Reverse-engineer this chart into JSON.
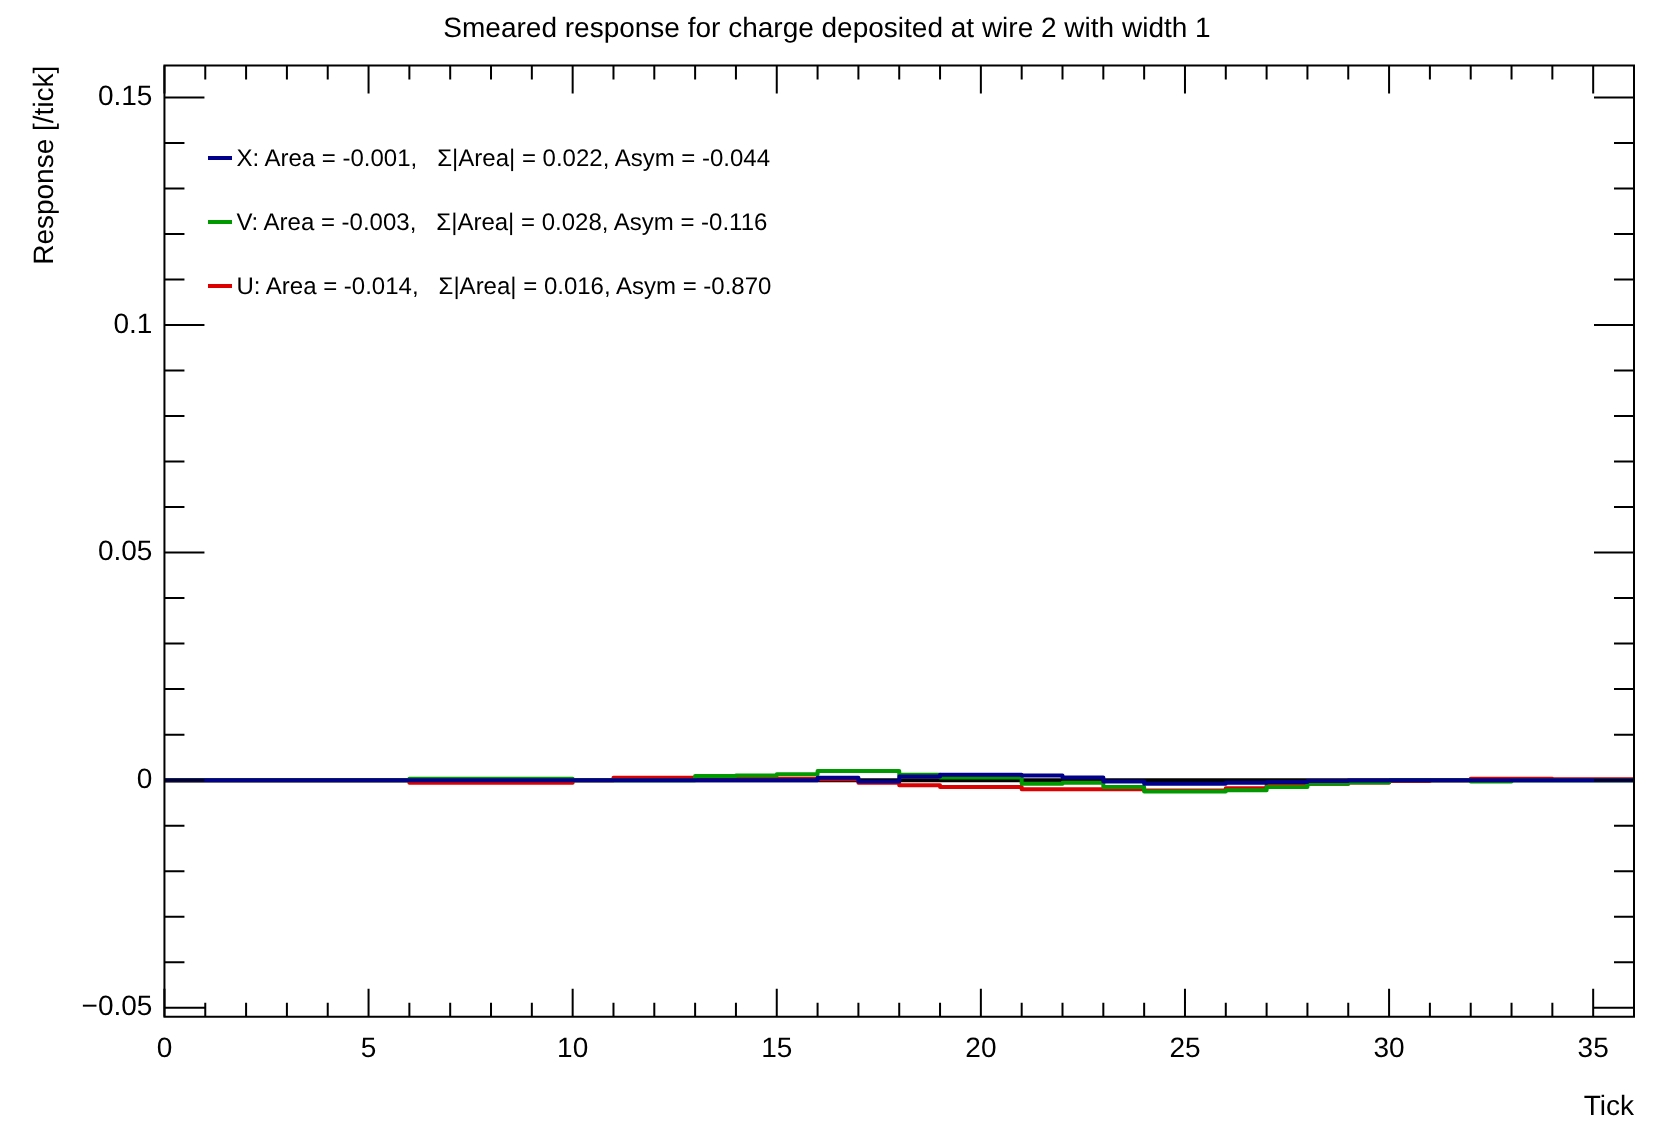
{
  "chart_data": {
    "type": "histogram",
    "title": "Smeared response for charge deposited at wire 2 with width 1",
    "xlabel": "Tick",
    "ylabel": "Response [/tick]",
    "bins": [
      0,
      1,
      2,
      3,
      4,
      5,
      6,
      7,
      8,
      9,
      10,
      11,
      12,
      13,
      14,
      15,
      16,
      17,
      18,
      19,
      20,
      21,
      22,
      23,
      24,
      25,
      26,
      27,
      28,
      29,
      30,
      31,
      32,
      33,
      34,
      35,
      36
    ],
    "series": [
      {
        "name": "X: Area = -0.001,   Σ|Area| = 0.022, Asym = -0.044",
        "color": "#00008b",
        "values": [
          0,
          0,
          0,
          0,
          0,
          0,
          0,
          0,
          0,
          0,
          0,
          0,
          0,
          0,
          0,
          0,
          0.0005,
          -0.0003,
          0.0008,
          0.0012,
          0.0012,
          0.001,
          0.0006,
          -0.0003,
          -0.0008,
          -0.0008,
          -0.0006,
          -0.0004,
          -0.0002,
          -0.0001,
          0,
          0,
          0,
          0,
          0,
          0
        ]
      },
      {
        "name": "V: Area = -0.003,   Σ|Area| = 0.028, Asym = -0.116",
        "color": "#009900",
        "values": [
          0,
          0,
          0,
          0,
          0,
          0,
          0.0003,
          0.0003,
          0.0003,
          0.0003,
          0,
          0,
          0,
          0.0009,
          0.001,
          0.0013,
          0.002,
          0.002,
          0.0012,
          0.0006,
          0.0006,
          -0.0008,
          -0.0006,
          -0.0015,
          -0.0025,
          -0.0025,
          -0.0022,
          -0.0015,
          -0.0008,
          -0.0005,
          0,
          0,
          -0.0003,
          0,
          0,
          0
        ]
      },
      {
        "name": "U: Area = -0.014,   Σ|Area| = 0.016, Asym = -0.870",
        "color": "#dd0000",
        "values": [
          0,
          0,
          0,
          0,
          0,
          0,
          -0.0006,
          -0.0006,
          -0.0006,
          -0.0006,
          0,
          0.0005,
          0.0005,
          0.0005,
          0.0003,
          0.0003,
          0.0002,
          -0.0006,
          -0.0011,
          -0.0015,
          -0.0015,
          -0.002,
          -0.002,
          -0.002,
          -0.0023,
          -0.0023,
          -0.0018,
          -0.001,
          -0.0008,
          -0.0005,
          -0.0002,
          0,
          0.0003,
          0.0003,
          0.0002,
          0.0002
        ]
      }
    ],
    "xlim": [
      0,
      36
    ],
    "xticks": [
      0,
      {
        "value": 1,
        "label": null
      },
      {
        "value": 2,
        "label": null
      },
      {
        "value": 3,
        "label": null
      },
      {
        "value": 4,
        "label": null
      },
      5,
      {
        "value": 6,
        "label": null
      },
      {
        "value": 7,
        "label": null
      },
      {
        "value": 8,
        "label": null
      },
      {
        "value": 9,
        "label": null
      },
      10,
      {
        "value": 11,
        "label": null
      },
      {
        "value": 12,
        "label": null
      },
      {
        "value": 13,
        "label": null
      },
      {
        "value": 14,
        "label": null
      },
      15,
      {
        "value": 16,
        "label": null
      },
      {
        "value": 17,
        "label": null
      },
      {
        "value": 18,
        "label": null
      },
      {
        "value": 19,
        "label": null
      },
      20,
      {
        "value": 21,
        "label": null
      },
      {
        "value": 22,
        "label": null
      },
      {
        "value": 23,
        "label": null
      },
      {
        "value": 24,
        "label": null
      },
      25,
      {
        "value": 26,
        "label": null
      },
      {
        "value": 27,
        "label": null
      },
      {
        "value": 28,
        "label": null
      },
      {
        "value": 29,
        "label": null
      },
      30,
      {
        "value": 31,
        "label": null
      },
      {
        "value": 32,
        "label": null
      },
      {
        "value": 33,
        "label": null
      },
      {
        "value": 34,
        "label": null
      },
      35
    ],
    "ylim": [
      -0.052,
      0.157
    ],
    "yticks": [
      {
        "value": -0.05,
        "label": "−0.05"
      },
      {
        "value": -0.04,
        "label": null
      },
      {
        "value": -0.03,
        "label": null
      },
      {
        "value": -0.02,
        "label": null
      },
      {
        "value": -0.01,
        "label": null
      },
      0,
      {
        "value": 0.01,
        "label": null
      },
      {
        "value": 0.02,
        "label": null
      },
      {
        "value": 0.03,
        "label": null
      },
      {
        "value": 0.04,
        "label": null
      },
      0.05,
      {
        "value": 0.06,
        "label": null
      },
      {
        "value": 0.07,
        "label": null
      },
      {
        "value": 0.08,
        "label": null
      },
      {
        "value": 0.09,
        "label": null
      },
      0.1,
      {
        "value": 0.11,
        "label": null
      },
      {
        "value": 0.12,
        "label": null
      },
      {
        "value": 0.13,
        "label": null
      },
      {
        "value": 0.14,
        "label": null
      },
      0.15
    ],
    "ref_lines": [
      {
        "axis": "y",
        "value": 0,
        "color": "#000000"
      }
    ],
    "legend": "top left",
    "grid": false
  }
}
